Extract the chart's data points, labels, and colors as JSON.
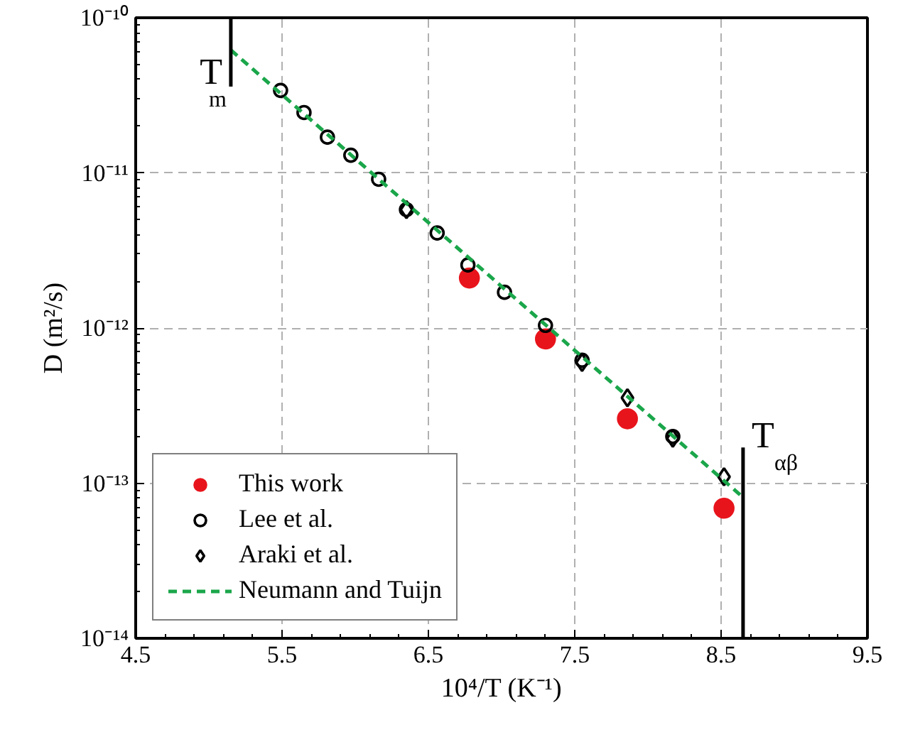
{
  "chart_data": {
    "type": "scatter",
    "xlabel": "10⁴/T (K⁻¹)",
    "ylabel": "D (m²/s)",
    "log": "y",
    "xlim": [
      4.5,
      9.5
    ],
    "xticks": [
      4.5,
      5.5,
      6.5,
      7.5,
      8.5,
      9.5
    ],
    "ylim": [
      1e-14,
      1e-10
    ],
    "yticks": [
      {
        "value": 1e-14,
        "label": "10⁻¹⁴"
      },
      {
        "value": 1e-13,
        "label": "10⁻¹³"
      },
      {
        "value": 1e-12,
        "label": "10⁻¹²"
      },
      {
        "value": 1e-11,
        "label": "10⁻¹¹"
      },
      {
        "value": 1e-10,
        "label": "10⁻¹⁰"
      }
    ],
    "grid": true,
    "legend": "bottom left",
    "series": [
      {
        "name": "This work",
        "color": "#e8141c",
        "marker": "circle",
        "x": [
          6.78,
          7.3,
          7.86,
          8.52
        ],
        "values": [
          2.1e-12,
          8.5e-13,
          2.6e-13,
          6.9e-14
        ]
      },
      {
        "name": "Lee et al.",
        "color": "#000000",
        "marker": "circle",
        "x": [
          5.49,
          5.65,
          5.81,
          5.97,
          6.16,
          6.35,
          6.56,
          6.77,
          7.02,
          7.3,
          7.55,
          8.17
        ],
        "values": [
          3.4e-11,
          2.45e-11,
          1.7e-11,
          1.3e-11,
          9.1e-12,
          5.8e-12,
          4.1e-12,
          2.55e-12,
          1.7e-12,
          1.04e-12,
          6.2e-13,
          2e-13
        ]
      },
      {
        "name": "Araki et al.",
        "color": "#000000",
        "marker": "diamond",
        "x": [
          6.35,
          7.55,
          7.86,
          8.17,
          8.52
        ],
        "values": [
          5.8e-12,
          6e-13,
          3.55e-13,
          1.95e-13,
          1.1e-13
        ]
      },
      {
        "name": "Neumann and Tuijn",
        "type": "line",
        "line_style": "dashed",
        "color": "#1aa64a",
        "x": [
          5.15,
          8.65
        ],
        "values": [
          6.2e-11,
          8.1e-14
        ]
      },
      {
        "type": "line",
        "line_style": "solid",
        "color": "#000000",
        "x": [
          5.15,
          5.15
        ],
        "values": [
          1e-10,
          3.6e-11
        ]
      },
      {
        "type": "line",
        "line_style": "solid",
        "color": "#000000",
        "x": [
          8.65,
          8.65
        ],
        "values": [
          1.7e-13,
          1e-14
        ]
      }
    ],
    "annotations": [
      {
        "text": "T$_{m}$",
        "x": 5.15,
        "y": 3.6e-11
      },
      {
        "text": "T$_{αβ}$",
        "x": 8.65,
        "y": 1.7e-13
      }
    ]
  }
}
